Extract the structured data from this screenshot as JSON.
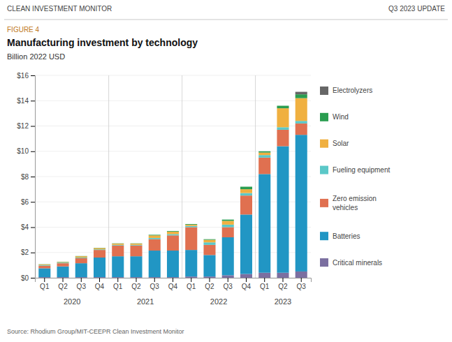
{
  "chart_data": {
    "type": "bar",
    "stacked": true,
    "header_left": "CLEAN INVESTMENT MONITOR",
    "header_right": "Q3 2023 UPDATE",
    "figure_label": "FIGURE 4",
    "title": "Manufacturing investment by technology",
    "subtitle": "Billion 2022 USD",
    "source": "Source: Rhodium Group/MIT-CEEPR Clean Investment Monitor",
    "categories": [
      "Q1",
      "Q2",
      "Q3",
      "Q4",
      "Q1",
      "Q2",
      "Q3",
      "Q4",
      "Q1",
      "Q2",
      "Q3",
      "Q4",
      "Q1",
      "Q2",
      "Q3"
    ],
    "year_labels": [
      "2020",
      "2021",
      "2022",
      "2023"
    ],
    "series": [
      {
        "name": "Critical minerals",
        "color": "#7b6fa0",
        "values": [
          0.05,
          0.05,
          0.05,
          0.05,
          0.05,
          0.05,
          0.05,
          0.05,
          0.1,
          0.1,
          0.2,
          0.3,
          0.4,
          0.4,
          0.5
        ]
      },
      {
        "name": "Batteries",
        "color": "#2196c4",
        "values": [
          0.7,
          0.85,
          1.1,
          1.55,
          1.65,
          1.65,
          2.1,
          2.1,
          2.1,
          1.7,
          3.0,
          4.7,
          7.8,
          10.0,
          10.8
        ]
      },
      {
        "name": "Zero emission\nvehicles",
        "color": "#e07050",
        "values": [
          0.2,
          0.25,
          0.4,
          0.6,
          0.85,
          0.85,
          0.9,
          1.2,
          1.8,
          0.8,
          0.8,
          1.5,
          1.3,
          1.3,
          0.9
        ]
      },
      {
        "name": "Fueling equipment",
        "color": "#5bc8c8",
        "values": [
          0.05,
          0.05,
          0.05,
          0.05,
          0.05,
          0.05,
          0.1,
          0.1,
          0.1,
          0.2,
          0.2,
          0.2,
          0.2,
          0.2,
          0.2
        ]
      },
      {
        "name": "Solar",
        "color": "#f0b040",
        "values": [
          0.05,
          0.05,
          0.1,
          0.1,
          0.1,
          0.1,
          0.2,
          0.2,
          0.1,
          0.2,
          0.3,
          0.3,
          0.2,
          1.5,
          1.8
        ]
      },
      {
        "name": "Wind",
        "color": "#2a9d50",
        "values": [
          0.02,
          0.02,
          0.02,
          0.02,
          0.02,
          0.02,
          0.05,
          0.05,
          0.05,
          0.05,
          0.1,
          0.2,
          0.1,
          0.2,
          0.3
        ]
      },
      {
        "name": "Electrolyzers",
        "color": "#666666",
        "values": [
          0.0,
          0.0,
          0.0,
          0.0,
          0.0,
          0.0,
          0.0,
          0.0,
          0.0,
          0.0,
          0.0,
          0.0,
          0.0,
          0.0,
          0.2
        ]
      }
    ],
    "ylim": [
      0,
      16
    ],
    "yticks": [
      {
        "value": 0,
        "label": "$0"
      },
      {
        "value": 2,
        "label": "$2"
      },
      {
        "value": 4,
        "label": "$4"
      },
      {
        "value": 6,
        "label": "$6"
      },
      {
        "value": 8,
        "label": "$8"
      },
      {
        "value": 10,
        "label": "$10"
      },
      {
        "value": 12,
        "label": "$12"
      },
      {
        "value": 14,
        "label": "$14"
      },
      {
        "value": 16,
        "label": "$16"
      }
    ],
    "grid": true,
    "legend": "right"
  }
}
